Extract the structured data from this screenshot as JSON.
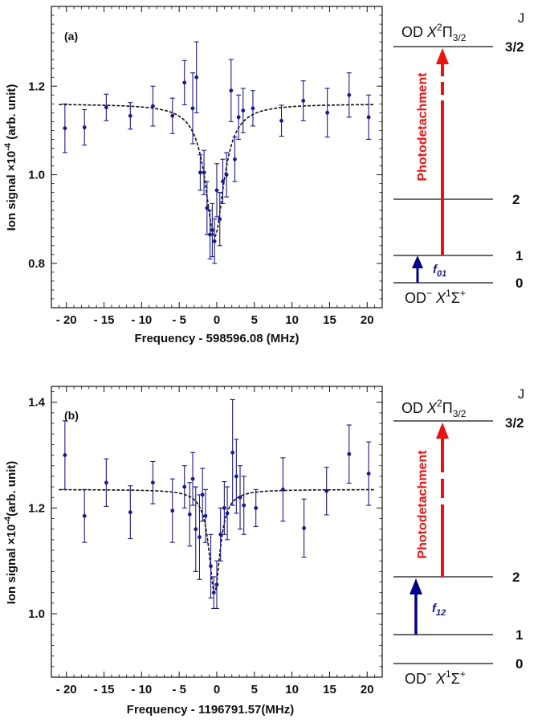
{
  "chart_data": [
    {
      "type": "scatter",
      "panel_label": "(a)",
      "xlabel_prefix": "Frequency - ",
      "xlabel_value": "598596.08",
      "xlabel_unit": "(MHz)",
      "ylabel": "Ion signal ×10",
      "ylabel_exp": "-4",
      "ylabel_unit": "(arb. unit)",
      "xlim": [
        -22,
        22
      ],
      "ylim": [
        0.7,
        1.38
      ],
      "xticks": [
        -20,
        -15,
        -10,
        -5,
        0,
        5,
        10,
        15,
        20
      ],
      "xtick_labels": [
        "- 20",
        "- 15",
        "- 10",
        "- 5",
        "0",
        "5",
        "10",
        "15",
        "20"
      ],
      "yticks": [
        0.8,
        1.0,
        1.2
      ],
      "ytick_labels": [
        "0.8",
        "1.0",
        "1.2"
      ],
      "fit": {
        "baseline": 1.16,
        "depth": 0.3,
        "center": -0.3,
        "hwhm": 1.5
      },
      "points": [
        {
          "x": -20.2,
          "y": 1.105,
          "err": 0.055
        },
        {
          "x": -17.6,
          "y": 1.107,
          "err": 0.04
        },
        {
          "x": -14.7,
          "y": 1.152,
          "err": 0.03
        },
        {
          "x": -11.5,
          "y": 1.133,
          "err": 0.03
        },
        {
          "x": -8.5,
          "y": 1.155,
          "err": 0.045
        },
        {
          "x": -5.9,
          "y": 1.133,
          "err": 0.04
        },
        {
          "x": -4.3,
          "y": 1.208,
          "err": 0.05
        },
        {
          "x": -3.2,
          "y": 1.15,
          "err": 0.08
        },
        {
          "x": -2.7,
          "y": 1.22,
          "err": 0.08
        },
        {
          "x": -2.2,
          "y": 1.005,
          "err": 0.04
        },
        {
          "x": -1.7,
          "y": 1.005,
          "err": 0.05
        },
        {
          "x": -1.3,
          "y": 0.925,
          "err": 0.06
        },
        {
          "x": -0.9,
          "y": 0.865,
          "err": 0.055
        },
        {
          "x": -0.6,
          "y": 0.875,
          "err": 0.06
        },
        {
          "x": -0.3,
          "y": 0.85,
          "err": 0.05
        },
        {
          "x": 0.0,
          "y": 0.965,
          "err": 0.06
        },
        {
          "x": 0.4,
          "y": 0.9,
          "err": 0.06
        },
        {
          "x": 0.8,
          "y": 0.985,
          "err": 0.05
        },
        {
          "x": 1.3,
          "y": 1.0,
          "err": 0.05
        },
        {
          "x": 1.9,
          "y": 1.19,
          "err": 0.07
        },
        {
          "x": 2.4,
          "y": 1.035,
          "err": 0.05
        },
        {
          "x": 2.9,
          "y": 1.13,
          "err": 0.05
        },
        {
          "x": 3.5,
          "y": 1.145,
          "err": 0.05
        },
        {
          "x": 4.8,
          "y": 1.15,
          "err": 0.04
        },
        {
          "x": 8.6,
          "y": 1.122,
          "err": 0.035
        },
        {
          "x": 11.5,
          "y": 1.167,
          "err": 0.045
        },
        {
          "x": 14.7,
          "y": 1.14,
          "err": 0.055
        },
        {
          "x": 17.6,
          "y": 1.18,
          "err": 0.05
        },
        {
          "x": 20.2,
          "y": 1.13,
          "err": 0.05
        }
      ]
    },
    {
      "type": "scatter",
      "panel_label": "(b)",
      "xlabel_prefix": "Frequency - ",
      "xlabel_value": "1196791.57",
      "xlabel_unit": "(MHz)",
      "ylabel": "Ion signal ×10",
      "ylabel_exp": "-4",
      "ylabel_unit": "(arb. unit)",
      "xlim": [
        -22,
        22
      ],
      "ylim": [
        0.88,
        1.43
      ],
      "xticks": [
        -20,
        -15,
        -10,
        -5,
        0,
        5,
        10,
        15,
        20
      ],
      "xtick_labels": [
        "- 20",
        "- 15",
        "- 10",
        "- 5",
        "0",
        "5",
        "10",
        "15",
        "20"
      ],
      "yticks": [
        1.0,
        1.2,
        1.4
      ],
      "ytick_labels": [
        "1.0",
        "1.2",
        "1.4"
      ],
      "fit": {
        "baseline": 1.235,
        "depth": 0.195,
        "center": -0.3,
        "hwhm": 0.9
      },
      "points": [
        {
          "x": -20.2,
          "y": 1.3,
          "err": 0.065
        },
        {
          "x": -17.6,
          "y": 1.185,
          "err": 0.05
        },
        {
          "x": -14.7,
          "y": 1.248,
          "err": 0.045
        },
        {
          "x": -11.5,
          "y": 1.192,
          "err": 0.05
        },
        {
          "x": -8.5,
          "y": 1.248,
          "err": 0.04
        },
        {
          "x": -5.9,
          "y": 1.195,
          "err": 0.06
        },
        {
          "x": -4.3,
          "y": 1.24,
          "err": 0.04
        },
        {
          "x": -3.6,
          "y": 1.188,
          "err": 0.06
        },
        {
          "x": -3.2,
          "y": 1.255,
          "err": 0.05
        },
        {
          "x": -2.8,
          "y": 1.16,
          "err": 0.08
        },
        {
          "x": -2.3,
          "y": 1.145,
          "err": 0.08
        },
        {
          "x": -1.9,
          "y": 1.225,
          "err": 0.05
        },
        {
          "x": -1.5,
          "y": 1.185,
          "err": 0.05
        },
        {
          "x": -0.8,
          "y": 1.09,
          "err": 0.06
        },
        {
          "x": -0.4,
          "y": 1.04,
          "err": 0.03
        },
        {
          "x": 0.0,
          "y": 1.055,
          "err": 0.045
        },
        {
          "x": 0.5,
          "y": 1.15,
          "err": 0.05
        },
        {
          "x": 1.0,
          "y": 1.2,
          "err": 0.05
        },
        {
          "x": 1.4,
          "y": 1.19,
          "err": 0.05
        },
        {
          "x": 2.1,
          "y": 1.305,
          "err": 0.1
        },
        {
          "x": 2.6,
          "y": 1.26,
          "err": 0.07
        },
        {
          "x": 3.1,
          "y": 1.22,
          "err": 0.06
        },
        {
          "x": 3.6,
          "y": 1.205,
          "err": 0.055
        },
        {
          "x": 5.2,
          "y": 1.2,
          "err": 0.035
        },
        {
          "x": 8.8,
          "y": 1.235,
          "err": 0.06
        },
        {
          "x": 11.6,
          "y": 1.162,
          "err": 0.055
        },
        {
          "x": 14.6,
          "y": 1.232,
          "err": 0.045
        },
        {
          "x": 17.6,
          "y": 1.302,
          "err": 0.055
        },
        {
          "x": 20.2,
          "y": 1.265,
          "err": 0.06
        }
      ]
    }
  ],
  "diagrams": [
    {
      "j_header": "J",
      "upper_state": {
        "prefix": "OD ",
        "sym": "X",
        "sup": "2",
        "term": "Π",
        "sub": "3/2"
      },
      "lower_state": {
        "prefix": "OD",
        "charge": "−",
        "sym": "X",
        "sup": "1",
        "term": "Σ",
        "term_sup": "+"
      },
      "levels": [
        "3/2",
        "2",
        "1",
        "0"
      ],
      "photodetachment_label": "Photodetachment",
      "transition_label": "f",
      "transition_sub": "01"
    },
    {
      "j_header": "J",
      "upper_state": {
        "prefix": "OD ",
        "sym": "X",
        "sup": "2",
        "term": "Π",
        "sub": "3/2"
      },
      "lower_state": {
        "prefix": "OD",
        "charge": "−",
        "sym": "X",
        "sup": "1",
        "term": "Σ",
        "term_sup": "+"
      },
      "levels": [
        "3/2",
        "2",
        "1",
        "0"
      ],
      "photodetachment_label": "Photodetachment",
      "transition_label": "f",
      "transition_sub": "12"
    }
  ],
  "colors": {
    "data_points": "#1a1a8c",
    "fit_line": "#111111",
    "photodetachment_arrow": "#ee1111",
    "transition_arrow": "#00008b"
  }
}
